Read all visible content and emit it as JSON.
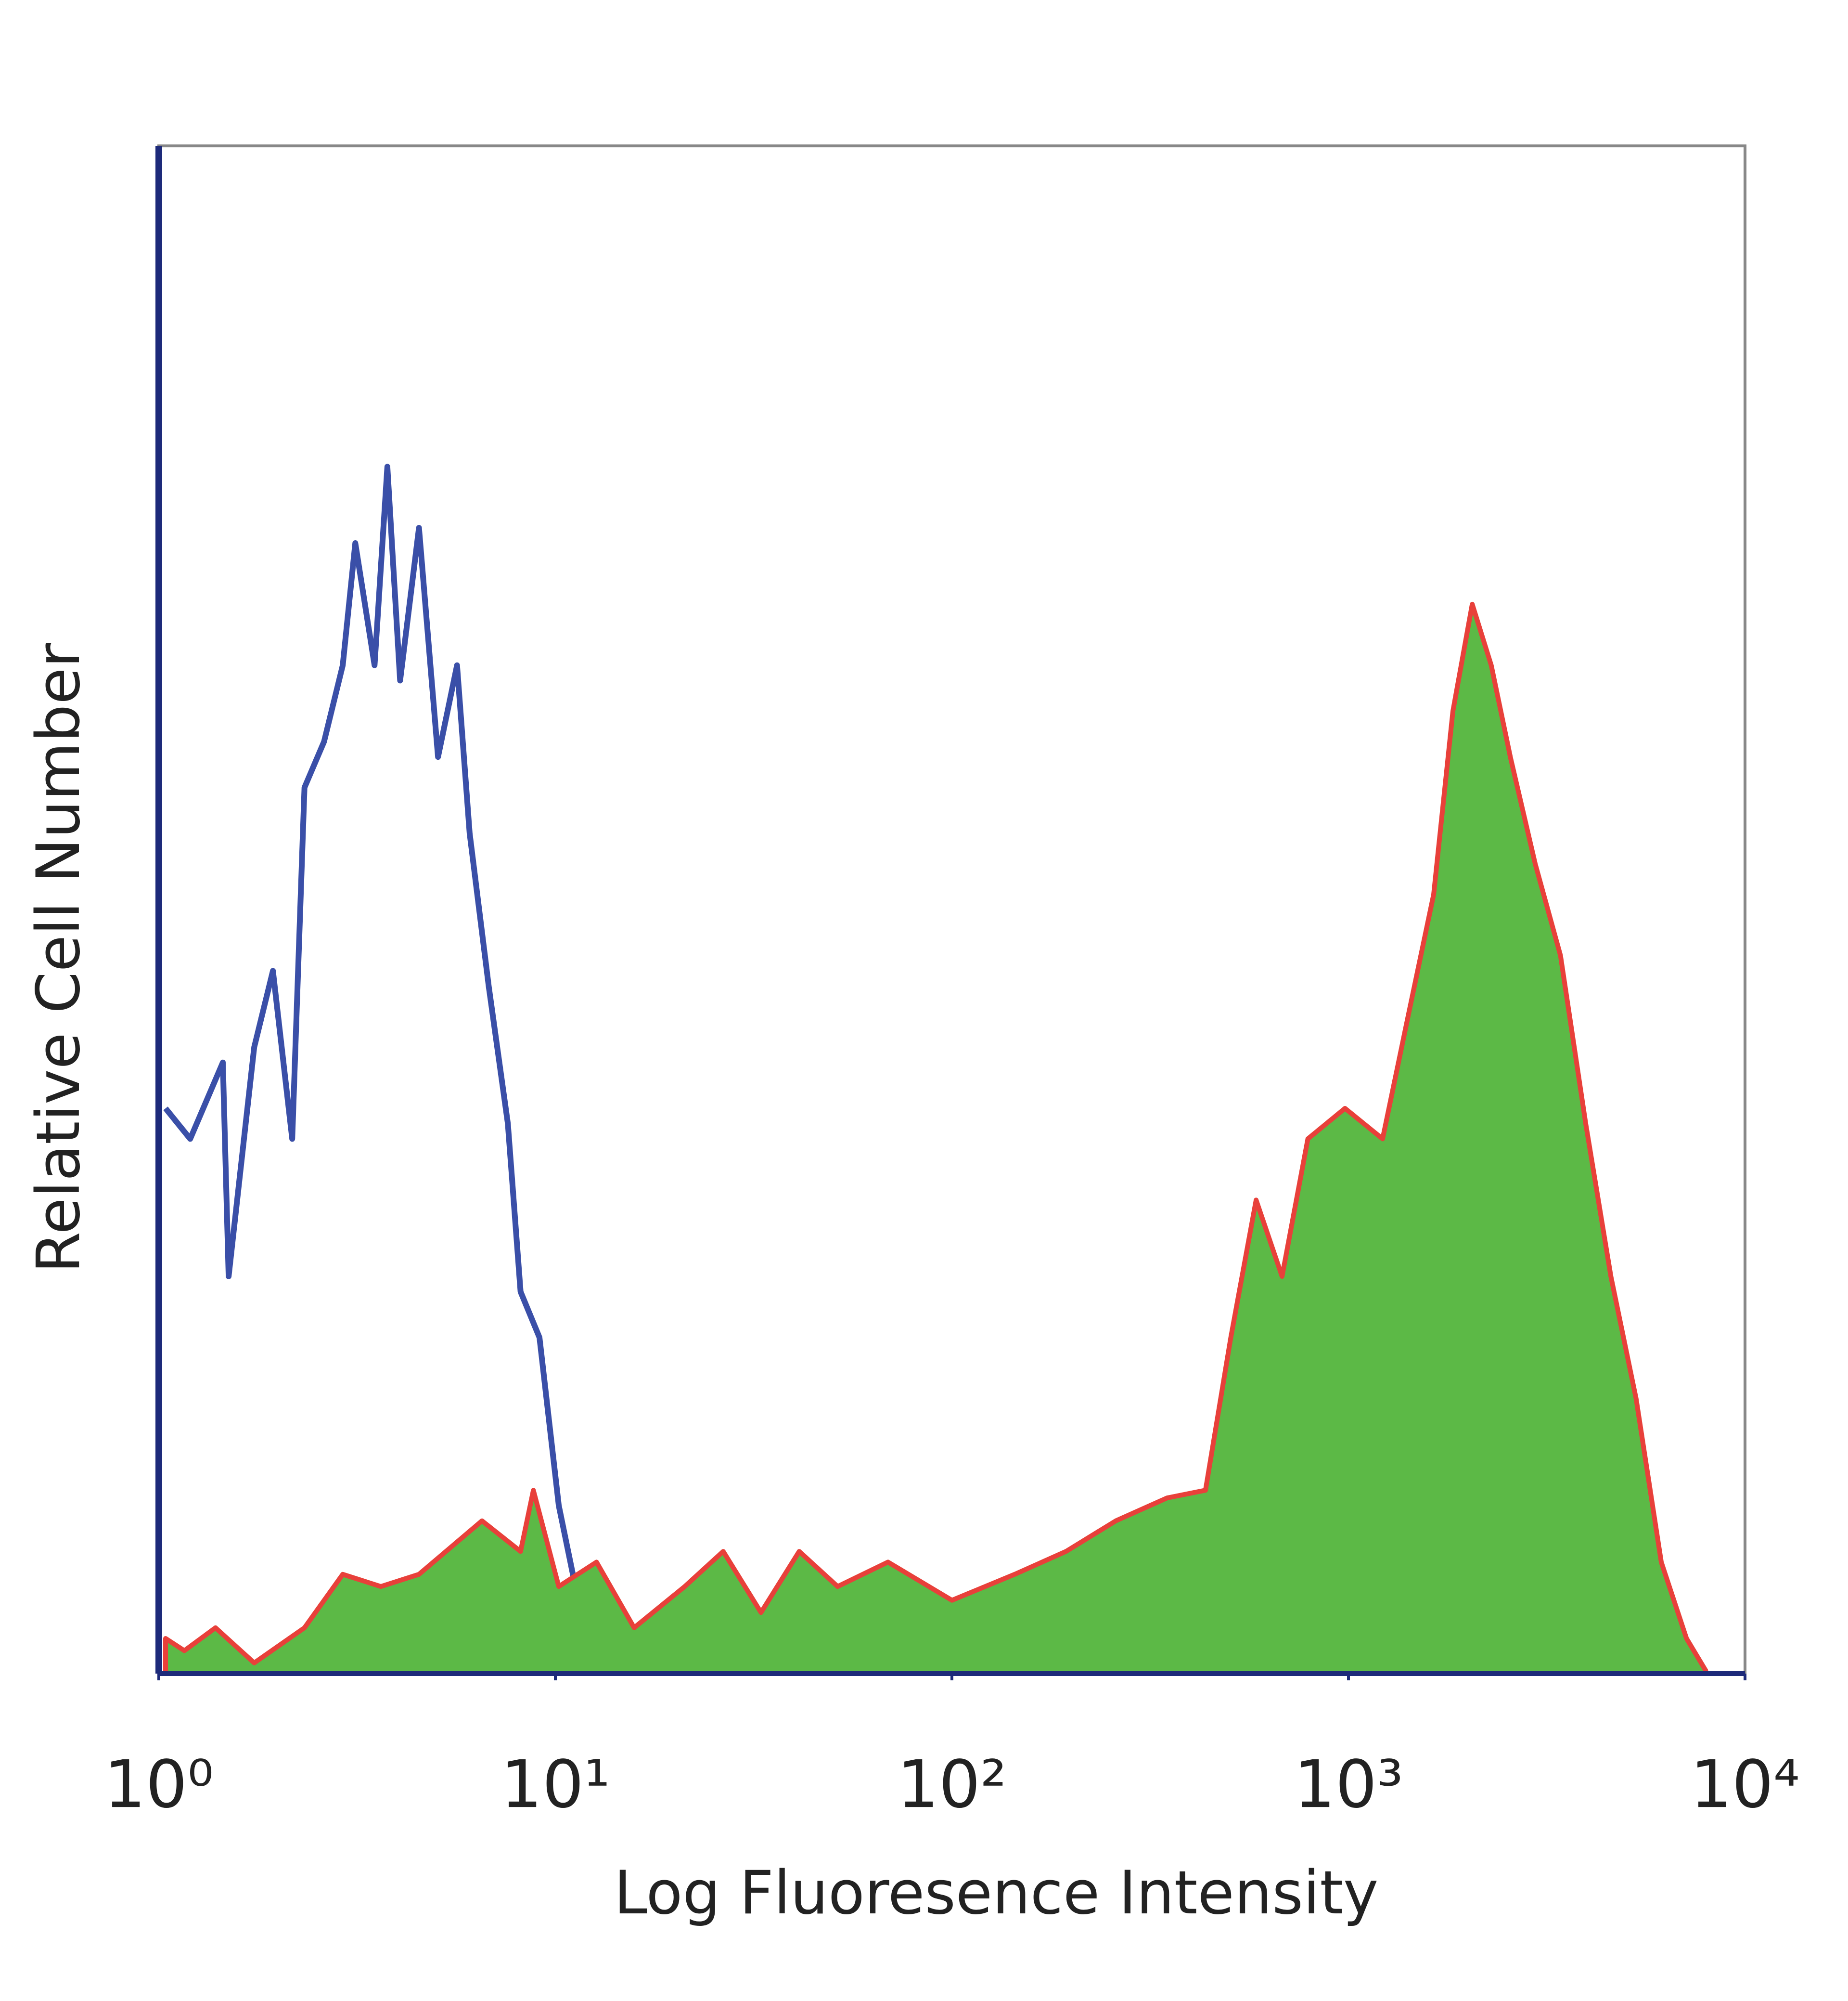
{
  "chart_data": {
    "type": "histogram",
    "x_label": "Log Fluoresence Intensity",
    "y_label": "Relative Cell Number",
    "xscale": "log",
    "xlim": [
      1,
      10000
    ],
    "ylim": [
      0,
      100
    ],
    "xticks": [
      {
        "value": 1,
        "label": "10⁰"
      },
      {
        "value": 10,
        "label": "10¹"
      },
      {
        "value": 100,
        "label": "10²"
      },
      {
        "value": 1000,
        "label": "10³"
      },
      {
        "value": 10000,
        "label": "10⁴"
      }
    ],
    "series": [
      {
        "color": "#3a4fa8",
        "fill": false,
        "x": [
          1.04,
          1.2,
          1.45,
          1.5,
          1.74,
          1.94,
          2.17,
          2.33,
          2.61,
          2.91,
          3.13,
          3.5,
          3.77,
          4.06,
          4.53,
          5.06,
          5.65,
          6.08,
          6.79,
          7.59,
          8.17,
          9.12,
          10.2,
          11.8,
          13.7,
          14.7
        ],
        "values": [
          37,
          35,
          40,
          26,
          41,
          46,
          35,
          58,
          61,
          66,
          74,
          66,
          79,
          65,
          75,
          60,
          66,
          55,
          45,
          36,
          25,
          22,
          11,
          3,
          1.5,
          0
        ]
      },
      {
        "color": "#5cb946",
        "edge_color": "#e8403a",
        "fill": true,
        "x": [
          1.04,
          1.16,
          1.39,
          1.74,
          2.33,
          2.91,
          3.63,
          4.53,
          6.53,
          8.17,
          8.8,
          10.2,
          12.7,
          15.8,
          21.2,
          26.5,
          33,
          41.2,
          51.5,
          69,
          100,
          144,
          194,
          259,
          349,
          436,
          505,
          585,
          680,
          790,
          980,
          1219,
          1413,
          1640,
          1834,
          2052,
          2291,
          2560,
          2958,
          3425,
          3965,
          4589,
          5313,
          6150,
          7120,
          7962
        ],
        "values": [
          2.3,
          1.5,
          3,
          0.7,
          3,
          6.5,
          5.7,
          6.5,
          10,
          8,
          12,
          5.7,
          7.3,
          3,
          5.7,
          8,
          4,
          8,
          5.7,
          7.3,
          4.8,
          6.5,
          8,
          10,
          11.5,
          12,
          22,
          31,
          26,
          35,
          37,
          35,
          43,
          51,
          63,
          70,
          66,
          60,
          53,
          47,
          36,
          26,
          18,
          7.3,
          2.3,
          0.2
        ]
      }
    ]
  }
}
